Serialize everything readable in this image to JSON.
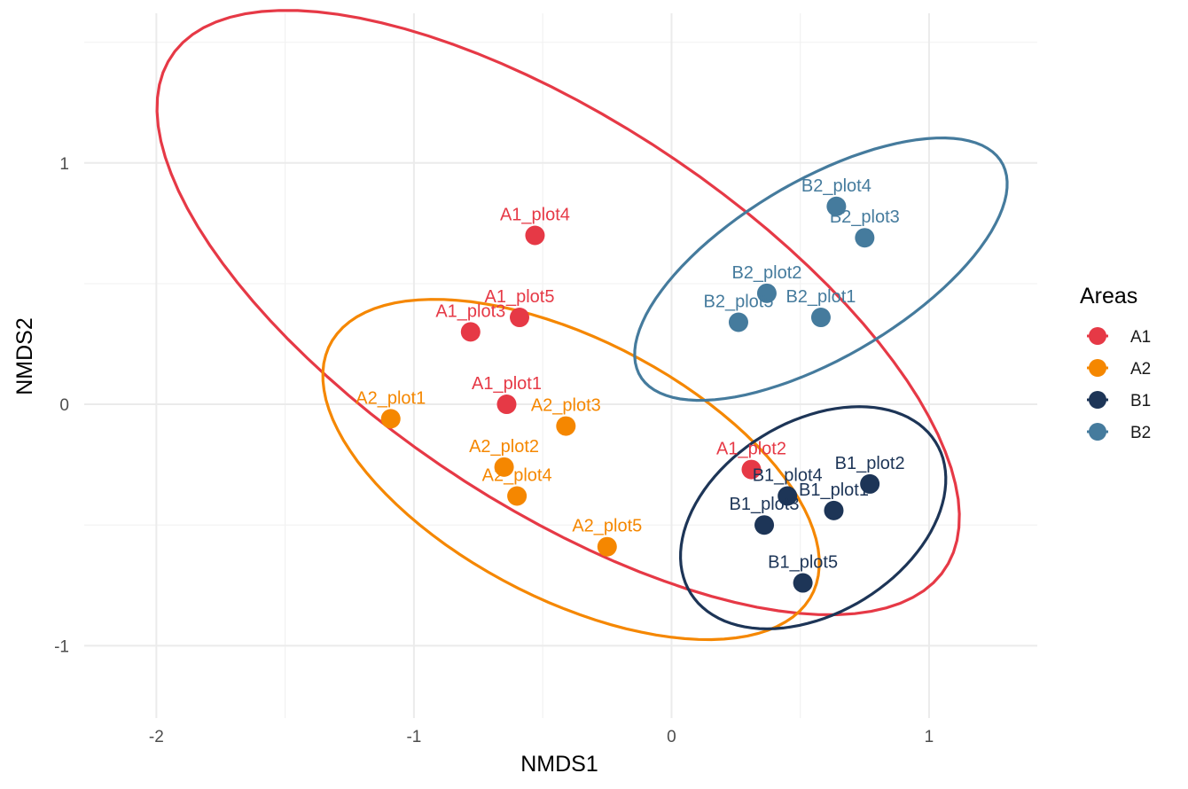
{
  "chart_data": {
    "type": "scatter",
    "title": "",
    "xlabel": "NMDS1",
    "ylabel": "NMDS2",
    "xlim": [
      -2.28,
      1.42
    ],
    "ylim": [
      -1.3,
      1.62
    ],
    "xticks": [
      -2,
      -1,
      0,
      1
    ],
    "xtick_labels": [
      "-2",
      "-1",
      "0",
      "1"
    ],
    "yticks": [
      -1,
      0,
      1
    ],
    "ytick_labels": [
      "-1",
      "0",
      "1"
    ],
    "grid": true,
    "legend": {
      "title": "Areas",
      "position": "right"
    },
    "series": [
      {
        "name": "A1",
        "color": "#E63946",
        "points": [
          {
            "label": "A1_plot1",
            "x": -0.64,
            "y": 0.0
          },
          {
            "label": "A1_plot2",
            "x": 0.31,
            "y": -0.27
          },
          {
            "label": "A1_plot3",
            "x": -0.78,
            "y": 0.3
          },
          {
            "label": "A1_plot4",
            "x": -0.53,
            "y": 0.7
          },
          {
            "label": "A1_plot5",
            "x": -0.59,
            "y": 0.36
          }
        ],
        "ellipse": {
          "center": [
            -0.44,
            0.38
          ],
          "semi_axes": [
            1.84,
            0.78
          ],
          "angle_deg": -36
        }
      },
      {
        "name": "A2",
        "color": "#F58700",
        "points": [
          {
            "label": "A2_plot1",
            "x": -1.09,
            "y": -0.06
          },
          {
            "label": "A2_plot2",
            "x": -0.65,
            "y": -0.26
          },
          {
            "label": "A2_plot3",
            "x": -0.41,
            "y": -0.09
          },
          {
            "label": "A2_plot4",
            "x": -0.6,
            "y": -0.38
          },
          {
            "label": "A2_plot5",
            "x": -0.25,
            "y": -0.59
          }
        ],
        "ellipse": {
          "center": [
            -0.39,
            -0.27
          ],
          "semi_axes": [
            1.07,
            0.53
          ],
          "angle_deg": -30
        }
      },
      {
        "name": "B1",
        "color": "#1D3557",
        "points": [
          {
            "label": "B1_plot1",
            "x": 0.63,
            "y": -0.44
          },
          {
            "label": "B1_plot2",
            "x": 0.77,
            "y": -0.33
          },
          {
            "label": "B1_plot3",
            "x": 0.36,
            "y": -0.5
          },
          {
            "label": "B1_plot4",
            "x": 0.45,
            "y": -0.38
          },
          {
            "label": "B1_plot5",
            "x": 0.51,
            "y": -0.74
          }
        ],
        "ellipse": {
          "center": [
            0.55,
            -0.47
          ],
          "semi_axes": [
            0.57,
            0.39
          ],
          "angle_deg": 36
        }
      },
      {
        "name": "B2",
        "color": "#457B9D",
        "points": [
          {
            "label": "B2_plot1",
            "x": 0.58,
            "y": 0.36
          },
          {
            "label": "B2_plot2",
            "x": 0.37,
            "y": 0.46
          },
          {
            "label": "B2_plot3",
            "x": 0.75,
            "y": 0.69
          },
          {
            "label": "B2_plot4",
            "x": 0.64,
            "y": 0.82
          },
          {
            "label": "B2_plot5",
            "x": 0.26,
            "y": 0.34
          }
        ],
        "ellipse": {
          "center": [
            0.58,
            0.56
          ],
          "semi_axes": [
            0.83,
            0.36
          ],
          "angle_deg": 33
        }
      }
    ]
  }
}
